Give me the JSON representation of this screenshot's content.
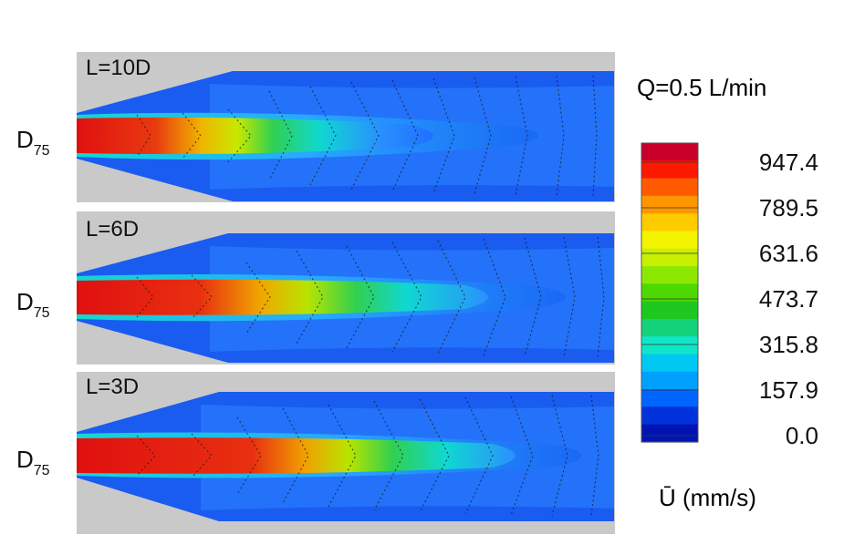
{
  "flow_rate_label": "Q=0.5 L/min",
  "panels": [
    {
      "id": "l10d",
      "length_label": "L=10D",
      "inlet_label": "D",
      "inlet_subscript": "75"
    },
    {
      "id": "l6d",
      "length_label": "L=6D",
      "inlet_label": "D",
      "inlet_subscript": "75"
    },
    {
      "id": "l3d",
      "length_label": "L=3D",
      "inlet_label": "D",
      "inlet_subscript": "75"
    }
  ],
  "colorbar": {
    "ticks": [
      "947.4",
      "789.5",
      "631.6",
      "473.7",
      "315.8",
      "157.9",
      "0.0"
    ],
    "unit_label": "Ū (mm/s)",
    "colors": [
      "#c8002a",
      "#ff1800",
      "#ff5a00",
      "#ff9600",
      "#ffcc00",
      "#f4f400",
      "#c8f000",
      "#8ce800",
      "#4cd800",
      "#1ec81e",
      "#14d27a",
      "#0fe6c8",
      "#00c8f0",
      "#00a0ff",
      "#0064ff",
      "#0032dc",
      "#0014b4"
    ]
  },
  "colors": {
    "wall": "#c9c9c9",
    "domain_blue": "#1a5cf0",
    "jet_core": "#e01010"
  }
}
